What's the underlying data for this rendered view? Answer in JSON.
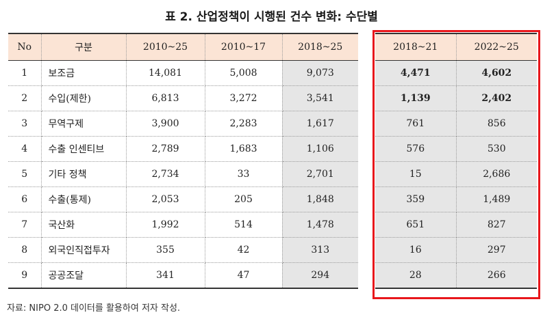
{
  "title": "표 2. 산업정책이 시행된 건수 변화: 수단별",
  "headers": [
    "No",
    "구분",
    "2010~25",
    "2010~17",
    "2018~25",
    "2018~21",
    "2022~25"
  ],
  "rows": [
    {
      "no": "1",
      "cat": "보조금",
      "a": "14,081",
      "b": "5,008",
      "c": "9,073",
      "d": "4,471",
      "e": "4,602"
    },
    {
      "no": "2",
      "cat": "수입(제한)",
      "a": "6,813",
      "b": "3,272",
      "c": "3,541",
      "d": "1,139",
      "e": "2,402"
    },
    {
      "no": "3",
      "cat": "무역구제",
      "a": "3,900",
      "b": "2,283",
      "c": "1,617",
      "d": "761",
      "e": "856"
    },
    {
      "no": "4",
      "cat": "수출 인센티브",
      "a": "2,789",
      "b": "1,683",
      "c": "1,106",
      "d": "576",
      "e": "530"
    },
    {
      "no": "5",
      "cat": "기타 정책",
      "a": "2,734",
      "b": "33",
      "c": "2,701",
      "d": "15",
      "e": "2,686"
    },
    {
      "no": "6",
      "cat": "수출(통제)",
      "a": "2,053",
      "b": "205",
      "c": "1,848",
      "d": "359",
      "e": "1,489"
    },
    {
      "no": "7",
      "cat": "국산화",
      "a": "1,992",
      "b": "514",
      "c": "1,478",
      "d": "651",
      "e": "827"
    },
    {
      "no": "8",
      "cat": "외국인직접투자",
      "a": "355",
      "b": "42",
      "c": "313",
      "d": "16",
      "e": "297"
    },
    {
      "no": "9",
      "cat": "공공조달",
      "a": "341",
      "b": "47",
      "c": "294",
      "d": "28",
      "e": "266"
    }
  ],
  "source": "자료: NIPO 2.0 데이터를 활용하여 저자 작성.",
  "colors": {
    "header_bg": "#fbe4d5",
    "shade": "#e6e6e6",
    "highlight_border": "#e8161b"
  }
}
